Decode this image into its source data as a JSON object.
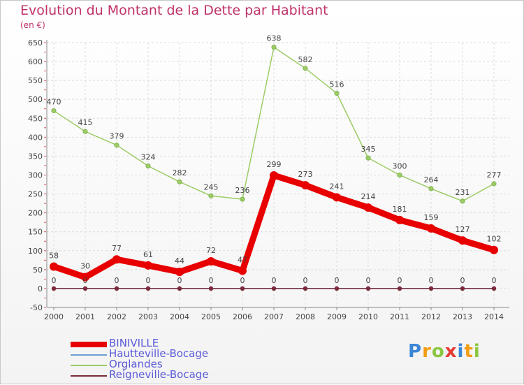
{
  "page": {
    "title": "Evolution du Montant de la Dette par Habitant",
    "unit": "(en €)",
    "logo_letters": [
      {
        "ch": "P",
        "color": "#3a86d6"
      },
      {
        "ch": "r",
        "color": "#f39c12"
      },
      {
        "ch": "o",
        "color": "#8cc63f"
      },
      {
        "ch": "x",
        "color": "#e53935"
      },
      {
        "ch": "i",
        "color": "#3a86d6"
      },
      {
        "ch": "t",
        "color": "#f39c12"
      },
      {
        "ch": "i",
        "color": "#8cc63f"
      }
    ]
  },
  "chart_data": {
    "type": "line",
    "title": "Evolution du Montant de la Dette par Habitant",
    "ylabel": "(en €)",
    "xlabel": "",
    "x": [
      "2000",
      "2001",
      "2002",
      "2003",
      "2004",
      "2005",
      "2006",
      "2007",
      "2008",
      "2009",
      "2010",
      "2011",
      "2012",
      "2013",
      "2014"
    ],
    "ylim": [
      -50,
      650
    ],
    "yticks": [
      -50,
      0,
      50,
      100,
      150,
      200,
      250,
      300,
      350,
      400,
      450,
      500,
      550,
      600,
      650
    ],
    "grid": true,
    "legend_position": "bottom-left",
    "series": [
      {
        "name": "BINIVILLE",
        "color": "#e80000",
        "values": [
          58,
          30,
          77,
          61,
          44,
          72,
          47,
          299,
          273,
          241,
          214,
          181,
          159,
          127,
          102
        ],
        "labels": [
          "58",
          "30",
          "77",
          "61",
          "44",
          "72",
          "47",
          "299",
          "273",
          "241",
          "214",
          "181",
          "159",
          "127",
          "102"
        ]
      },
      {
        "name": "Hautteville-Bocage",
        "color": "#6f9fcf",
        "values": [
          0,
          0,
          0,
          0,
          0,
          0,
          0,
          0,
          0,
          0,
          0,
          0,
          0,
          0,
          0
        ],
        "labels": [
          "0",
          "0",
          "0",
          "0",
          "0",
          "0",
          "0",
          "0",
          "0",
          "0",
          "0",
          "0",
          "0",
          "0",
          "0"
        ]
      },
      {
        "name": "Orglandes",
        "color": "#9ccc65",
        "values": [
          470,
          415,
          379,
          324,
          282,
          245,
          236,
          638,
          582,
          516,
          345,
          300,
          264,
          231,
          277
        ],
        "labels": [
          "470",
          "415",
          "379",
          "324",
          "282",
          "245",
          "236",
          "638",
          "582",
          "516",
          "345",
          "300",
          "264",
          "231",
          "277"
        ]
      },
      {
        "name": "Reigneville-Bocage",
        "color": "#7a2a3a",
        "values": [
          0,
          0,
          0,
          0,
          0,
          0,
          0,
          0,
          0,
          0,
          0,
          0,
          0,
          0,
          0
        ],
        "labels": []
      }
    ]
  }
}
